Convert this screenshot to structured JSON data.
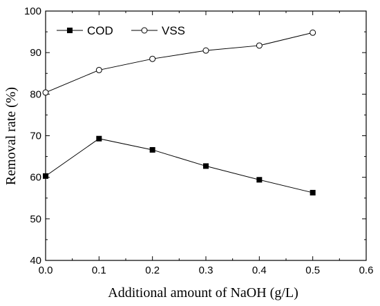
{
  "chart_data": {
    "type": "line",
    "xlabel": "Additional amount of NaOH (g/L)",
    "ylabel": "Removal rate (%)",
    "xlim": [
      0.0,
      0.6
    ],
    "ylim": [
      40,
      100
    ],
    "x_ticks": [
      0.0,
      0.1,
      0.2,
      0.3,
      0.4,
      0.5,
      0.6
    ],
    "x_tick_labels": [
      "0.0",
      "0.1",
      "0.2",
      "0.3",
      "0.4",
      "0.5",
      "0.6"
    ],
    "y_ticks": [
      40,
      50,
      60,
      70,
      80,
      90,
      100
    ],
    "y_tick_labels": [
      "40",
      "50",
      "60",
      "70",
      "80",
      "90",
      "100"
    ],
    "grid": false,
    "legend_position": "top-left",
    "series": [
      {
        "name": "COD",
        "marker": "filled-square",
        "color": "#000000",
        "x": [
          0.0,
          0.1,
          0.2,
          0.3,
          0.4,
          0.5
        ],
        "values": [
          60.3,
          69.3,
          66.6,
          62.7,
          59.4,
          56.3
        ]
      },
      {
        "name": "VSS",
        "marker": "open-circle",
        "color": "#000000",
        "x": [
          0.0,
          0.1,
          0.2,
          0.3,
          0.4,
          0.5
        ],
        "values": [
          80.4,
          85.8,
          88.5,
          90.5,
          91.7,
          94.8
        ]
      }
    ]
  }
}
